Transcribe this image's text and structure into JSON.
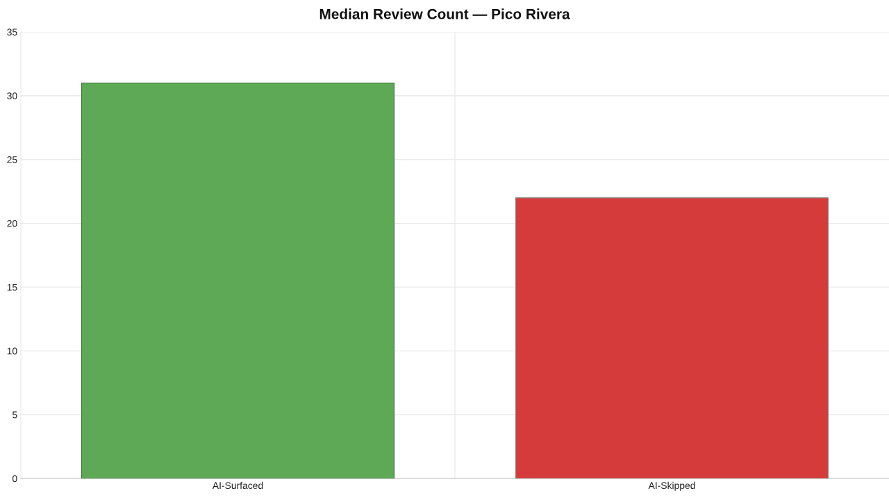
{
  "chart_data": {
    "type": "bar",
    "title": "Median Review Count — Pico Rivera",
    "categories": [
      "AI-Surfaced",
      "AI-Skipped"
    ],
    "values": [
      31,
      22
    ],
    "colors": [
      "#5ea955",
      "#d63b3c"
    ],
    "ylim": [
      0,
      35
    ],
    "yticks": [
      0,
      5,
      10,
      15,
      20,
      25,
      30,
      35
    ],
    "grid": true
  }
}
